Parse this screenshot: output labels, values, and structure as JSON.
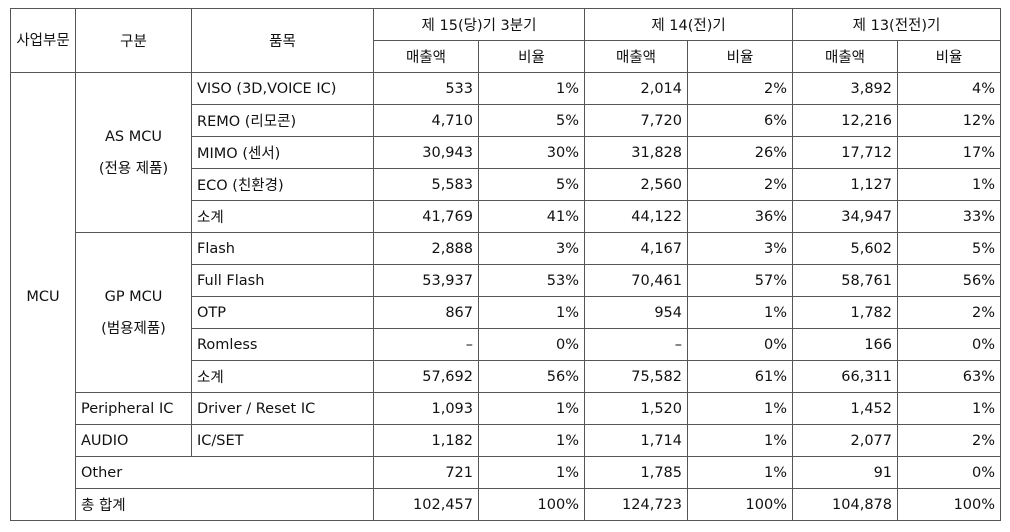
{
  "header": {
    "division": "사업부문",
    "category": "구분",
    "item": "품목",
    "periods": [
      {
        "name": "제 15(당)기 3분기",
        "sales": "매출액",
        "ratio": "비율"
      },
      {
        "name": "제 14(전)기",
        "sales": "매출액",
        "ratio": "비율"
      },
      {
        "name": "제 13(전전)기",
        "sales": "매출액",
        "ratio": "비율"
      }
    ]
  },
  "table": {
    "segment": "MCU",
    "groups": [
      {
        "name": "AS MCU",
        "sub": "(전용 제품)",
        "rows": [
          {
            "item": "VISO (3D,VOICE IC)",
            "values": [
              "533",
              "1%",
              "2,014",
              "2%",
              "3,892",
              "4%"
            ]
          },
          {
            "item": "REMO (리모콘)",
            "values": [
              "4,710",
              "5%",
              "7,720",
              "6%",
              "12,216",
              "12%"
            ]
          },
          {
            "item": "MIMO (센서)",
            "values": [
              "30,943",
              "30%",
              "31,828",
              "26%",
              "17,712",
              "17%"
            ]
          },
          {
            "item": "ECO (친환경)",
            "values": [
              "5,583",
              "5%",
              "2,560",
              "2%",
              "1,127",
              "1%"
            ]
          },
          {
            "item": "소계",
            "values": [
              "41,769",
              "41%",
              "44,122",
              "36%",
              "34,947",
              "33%"
            ]
          }
        ]
      },
      {
        "name": "GP MCU",
        "sub": "(범용제품)",
        "rows": [
          {
            "item": "Flash",
            "values": [
              "2,888",
              "3%",
              "4,167",
              "3%",
              "5,602",
              "5%"
            ]
          },
          {
            "item": "Full Flash",
            "values": [
              "53,937",
              "53%",
              "70,461",
              "57%",
              "58,761",
              "56%"
            ]
          },
          {
            "item": "OTP",
            "values": [
              "867",
              "1%",
              "954",
              "1%",
              "1,782",
              "2%"
            ]
          },
          {
            "item": "Romless",
            "values": [
              "–",
              "0%",
              "–",
              "0%",
              "166",
              "0%"
            ]
          },
          {
            "item": "소계",
            "values": [
              "57,692",
              "56%",
              "75,582",
              "61%",
              "66,311",
              "63%"
            ]
          }
        ]
      },
      {
        "name": "Peripheral IC",
        "rows": [
          {
            "item": "Driver / Reset IC",
            "values": [
              "1,093",
              "1%",
              "1,520",
              "1%",
              "1,452",
              "1%"
            ]
          }
        ]
      },
      {
        "name": "AUDIO",
        "rows": [
          {
            "item": "IC/SET",
            "values": [
              "1,182",
              "1%",
              "1,714",
              "1%",
              "2,077",
              "2%"
            ]
          }
        ]
      },
      {
        "name": "Other",
        "rows": [
          {
            "values": [
              "721",
              "1%",
              "1,785",
              "1%",
              "91",
              "0%"
            ]
          }
        ]
      },
      {
        "name": "총 합계",
        "rows": [
          {
            "values": [
              "102,457",
              "100%",
              "124,723",
              "100%",
              "104,878",
              "100%"
            ]
          }
        ]
      }
    ]
  }
}
